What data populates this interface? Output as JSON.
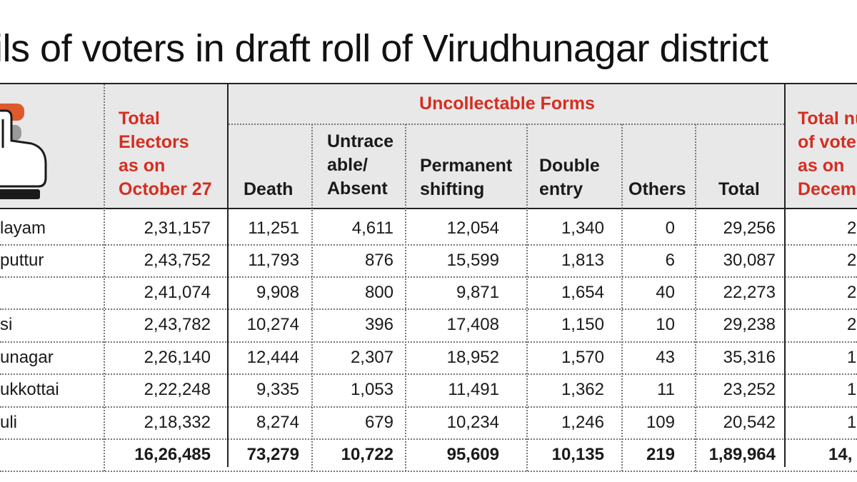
{
  "title": "tails of voters in draft roll of Virudhunagar district",
  "headers": {
    "total_electors": [
      "Total",
      "Electors",
      "as on",
      "October  27"
    ],
    "uncollectable": "Uncollectable Forms",
    "death": "Death",
    "untraceable": [
      "Untrace",
      "able/",
      "Absent"
    ],
    "permanent": [
      "Permanent",
      "shifting"
    ],
    "double": [
      "Double",
      "entry"
    ],
    "others": "Others",
    "total": "Total",
    "total_voters": [
      "Total nu",
      "of vote",
      "as on",
      "Decem"
    ]
  },
  "colors": {
    "accent": "#d62d20",
    "header_bg": "#e8e8e8"
  },
  "icon": "hand-finger-voting-icon",
  "rows": [
    {
      "constituency": "layam",
      "electors": "2,31,157",
      "death": "11,251",
      "untraceable": "4,611",
      "permanent": "12,054",
      "double": "1,340",
      "others": "0",
      "total": "29,256",
      "voters": "2"
    },
    {
      "constituency": "puttur",
      "electors": "2,43,752",
      "death": "11,793",
      "untraceable": "876",
      "permanent": "15,599",
      "double": "1,813",
      "others": "6",
      "total": "30,087",
      "voters": "2"
    },
    {
      "constituency": "",
      "electors": "2,41,074",
      "death": "9,908",
      "untraceable": "800",
      "permanent": "9,871",
      "double": "1,654",
      "others": "40",
      "total": "22,273",
      "voters": "2"
    },
    {
      "constituency": "si",
      "electors": "2,43,782",
      "death": "10,274",
      "untraceable": "396",
      "permanent": "17,408",
      "double": "1,150",
      "others": "10",
      "total": "29,238",
      "voters": "2"
    },
    {
      "constituency": "unagar",
      "electors": "2,26,140",
      "death": "12,444",
      "untraceable": "2,307",
      "permanent": "18,952",
      "double": "1,570",
      "others": "43",
      "total": "35,316",
      "voters": "1"
    },
    {
      "constituency": "ukkottai",
      "electors": "2,22,248",
      "death": "9,335",
      "untraceable": "1,053",
      "permanent": "11,491",
      "double": "1,362",
      "others": "11",
      "total": "23,252",
      "voters": "1"
    },
    {
      "constituency": "uli",
      "electors": "2,18,332",
      "death": "8,274",
      "untraceable": "679",
      "permanent": "10,234",
      "double": "1,246",
      "others": "109",
      "total": "20,542",
      "voters": "1"
    }
  ],
  "totals": {
    "electors": "16,26,485",
    "death": "73,279",
    "untraceable": "10,722",
    "permanent": "95,609",
    "double": "10,135",
    "others": "219",
    "total": "1,89,964",
    "voters": "14,"
  }
}
